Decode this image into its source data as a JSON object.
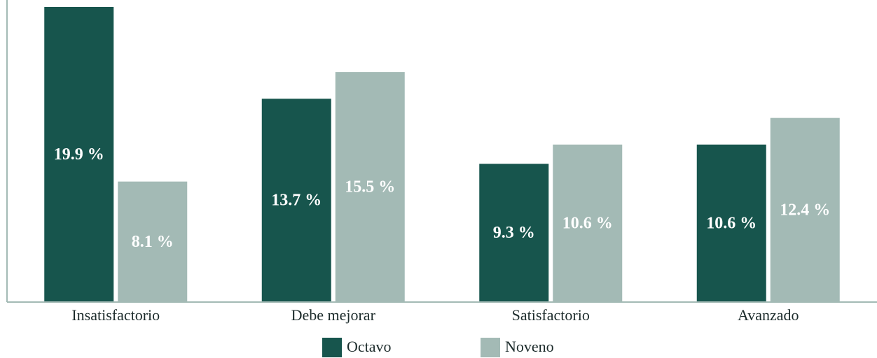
{
  "chart_data": {
    "type": "bar",
    "categories": [
      "Insatisfactorio",
      "Debe mejorar",
      "Satisfactorio",
      "Avanzado"
    ],
    "series": [
      {
        "name": "Octavo",
        "color": "#17554d",
        "values": [
          19.9,
          13.7,
          9.3,
          10.6
        ],
        "value_labels": [
          "19.9 %",
          "13.7 %",
          "9.3 %",
          "10.6 %"
        ]
      },
      {
        "name": "Noveno",
        "color": "#a3bab5",
        "values": [
          8.1,
          15.5,
          10.6,
          12.4
        ],
        "value_labels": [
          "8.1 %",
          "15.5 %",
          "10.6 %",
          "12.4 %"
        ]
      }
    ]
  }
}
